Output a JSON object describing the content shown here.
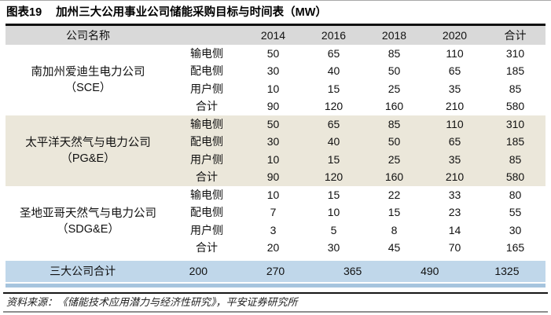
{
  "title": {
    "figure_label": "图表19",
    "text": "加州三大公用事业公司储能采购目标与时间表（MW）"
  },
  "chart_data": {
    "type": "table",
    "company_header": "公司名称",
    "year_headers": [
      "2014",
      "2016",
      "2018",
      "2020",
      "合计"
    ],
    "groups": [
      {
        "company": "南加州爱迪生电力公司",
        "abbr": "（SCE）",
        "rows": [
          {
            "label": "输电侧",
            "values": [
              "50",
              "65",
              "85",
              "110",
              "310"
            ]
          },
          {
            "label": "配电侧",
            "values": [
              "30",
              "40",
              "50",
              "65",
              "185"
            ]
          },
          {
            "label": "用户侧",
            "values": [
              "10",
              "15",
              "25",
              "35",
              "85"
            ]
          },
          {
            "label": "合计",
            "values": [
              "90",
              "120",
              "160",
              "210",
              "580"
            ]
          }
        ]
      },
      {
        "company": "太平洋天然气与电力公司",
        "abbr": "（PG&E）",
        "rows": [
          {
            "label": "输电侧",
            "values": [
              "50",
              "65",
              "85",
              "110",
              "310"
            ]
          },
          {
            "label": "配电侧",
            "values": [
              "30",
              "40",
              "50",
              "65",
              "185"
            ]
          },
          {
            "label": "用户侧",
            "values": [
              "10",
              "15",
              "25",
              "35",
              "85"
            ]
          },
          {
            "label": "合计",
            "values": [
              "90",
              "120",
              "160",
              "210",
              "580"
            ]
          }
        ]
      },
      {
        "company": "圣地亚哥天然气与电力公司",
        "abbr": "（SDG&E）",
        "rows": [
          {
            "label": "输电侧",
            "values": [
              "10",
              "15",
              "22",
              "33",
              "80"
            ]
          },
          {
            "label": "配电侧",
            "values": [
              "7",
              "10",
              "15",
              "23",
              "55"
            ]
          },
          {
            "label": "用户侧",
            "values": [
              "3",
              "5",
              "8",
              "14",
              "30"
            ]
          },
          {
            "label": "合计",
            "values": [
              "20",
              "30",
              "45",
              "70",
              "165"
            ]
          }
        ]
      }
    ],
    "total_row": {
      "label": "三大公司合计",
      "values": [
        "200",
        "270",
        "365",
        "490",
        "1325"
      ]
    }
  },
  "footer": {
    "source": "资料来源：《储能技术应用潜力与经济性研究》，平安证券研究所"
  },
  "colors": {
    "header_bg": "#d9d9d9",
    "group_highlight_bg": "#ebe7da",
    "total_row_bg": "#c0d7ea",
    "total_row_strip": "#a6c4de"
  }
}
